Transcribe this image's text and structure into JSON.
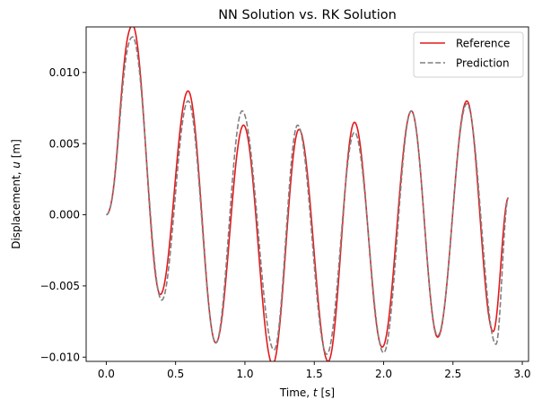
{
  "chart_data": {
    "type": "line",
    "title": "NN Solution vs. RK Solution",
    "xlabel": "Time, ",
    "xlabel_var": "t",
    "xlabel_unit": " [s]",
    "ylabel": "Displacement, ",
    "ylabel_var": "u",
    "ylabel_unit": " [m]",
    "xlim": [
      -0.145,
      3.045
    ],
    "ylim": [
      -0.0103,
      0.0132
    ],
    "xticks": [
      0.0,
      0.5,
      1.0,
      1.5,
      2.0,
      2.5,
      3.0
    ],
    "xtick_labels": [
      "0.0",
      "0.5",
      "1.0",
      "1.5",
      "2.0",
      "2.5",
      "3.0"
    ],
    "yticks": [
      -0.01,
      -0.005,
      0.0,
      0.005,
      0.01
    ],
    "ytick_labels": [
      "−0.010",
      "−0.005",
      "0.000",
      "0.005",
      "0.010"
    ],
    "grid": false,
    "legend_position": "top-right",
    "series": [
      {
        "name": "Reference",
        "color": "#e41a1c",
        "dash": "solid",
        "x": [
          0.0,
          0.19,
          0.39,
          0.59,
          0.79,
          0.99,
          1.2,
          1.39,
          1.6,
          1.79,
          1.99,
          2.2,
          2.39,
          2.6,
          2.79,
          2.9
        ],
        "y": [
          0.0,
          0.0133,
          -0.0056,
          0.0087,
          -0.009,
          0.0063,
          -0.0105,
          0.006,
          -0.0103,
          0.0065,
          -0.0093,
          0.0073,
          -0.0086,
          0.008,
          -0.0082,
          0.0012
        ]
      },
      {
        "name": "Prediction",
        "color": "#808080",
        "dash": "dashed",
        "x": [
          0.0,
          0.19,
          0.4,
          0.59,
          0.79,
          0.98,
          1.21,
          1.38,
          1.59,
          1.79,
          2.0,
          2.2,
          2.39,
          2.6,
          2.81,
          2.9
        ],
        "y": [
          0.0,
          0.0125,
          -0.006,
          0.008,
          -0.009,
          0.0073,
          -0.0095,
          0.0063,
          -0.0098,
          0.0058,
          -0.0097,
          0.0073,
          -0.0085,
          0.0078,
          -0.0091,
          0.0012
        ]
      }
    ]
  }
}
